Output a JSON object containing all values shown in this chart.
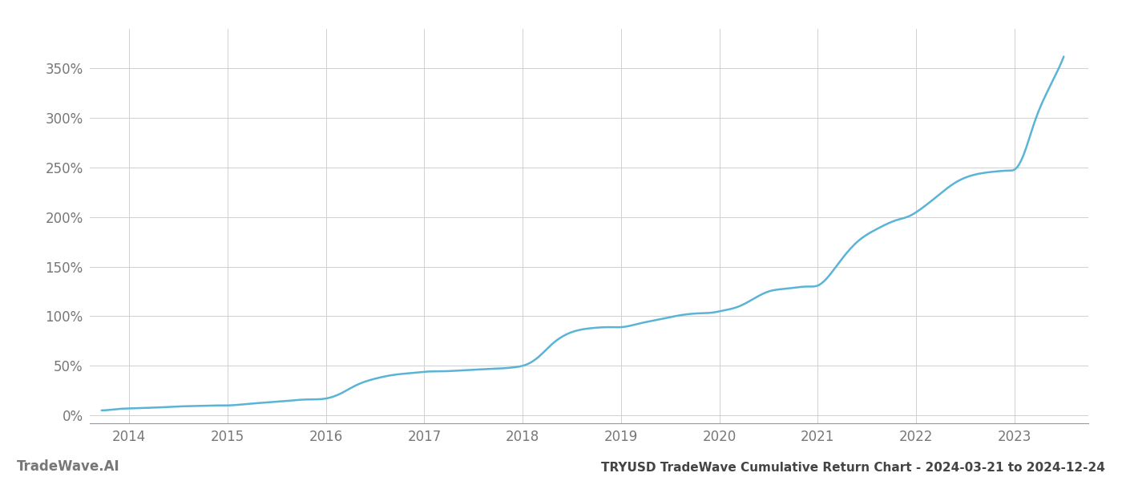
{
  "title": "TRYUSD TradeWave Cumulative Return Chart - 2024-03-21 to 2024-12-24",
  "watermark": "TradeWave.AI",
  "line_color": "#5ab4d6",
  "background_color": "#ffffff",
  "grid_color": "#d0d0d0",
  "axis_color": "#999999",
  "tick_label_color": "#777777",
  "xlim_start": 2013.6,
  "xlim_end": 2023.75,
  "ylim_min": -0.08,
  "ylim_max": 3.9,
  "x_ticks": [
    2014,
    2015,
    2016,
    2017,
    2018,
    2019,
    2020,
    2021,
    2022,
    2023
  ],
  "y_ticks": [
    0.0,
    0.5,
    1.0,
    1.5,
    2.0,
    2.5,
    3.0,
    3.5
  ],
  "y_tick_labels": [
    "0%",
    "50%",
    "100%",
    "150%",
    "200%",
    "250%",
    "300%",
    "350%"
  ],
  "data_x": [
    2013.72,
    2013.8,
    2013.9,
    2014.0,
    2014.15,
    2014.3,
    2014.5,
    2014.7,
    2014.9,
    2015.0,
    2015.2,
    2015.4,
    2015.6,
    2015.8,
    2016.0,
    2016.15,
    2016.3,
    2016.5,
    2016.7,
    2016.9,
    2017.0,
    2017.2,
    2017.4,
    2017.6,
    2017.8,
    2017.95,
    2018.0,
    2018.15,
    2018.3,
    2018.5,
    2018.7,
    2018.9,
    2019.0,
    2019.2,
    2019.4,
    2019.6,
    2019.8,
    2019.95,
    2020.0,
    2020.2,
    2020.5,
    2020.7,
    2020.9,
    2021.0,
    2021.2,
    2021.4,
    2021.6,
    2021.8,
    2021.95,
    2022.0,
    2022.2,
    2022.4,
    2022.6,
    2022.8,
    2022.95,
    2023.0,
    2023.1,
    2023.2,
    2023.35,
    2023.5
  ],
  "data_y": [
    0.05,
    0.055,
    0.065,
    0.07,
    0.075,
    0.08,
    0.09,
    0.095,
    0.1,
    0.1,
    0.115,
    0.13,
    0.145,
    0.16,
    0.17,
    0.22,
    0.3,
    0.37,
    0.41,
    0.43,
    0.44,
    0.445,
    0.455,
    0.465,
    0.475,
    0.49,
    0.5,
    0.58,
    0.72,
    0.84,
    0.88,
    0.89,
    0.89,
    0.93,
    0.97,
    1.01,
    1.03,
    1.04,
    1.05,
    1.1,
    1.25,
    1.28,
    1.3,
    1.31,
    1.52,
    1.75,
    1.88,
    1.97,
    2.02,
    2.05,
    2.2,
    2.35,
    2.43,
    2.46,
    2.47,
    2.48,
    2.65,
    2.95,
    3.3,
    3.62
  ],
  "title_fontsize": 11,
  "tick_fontsize": 12,
  "watermark_fontsize": 12,
  "line_width": 1.8
}
